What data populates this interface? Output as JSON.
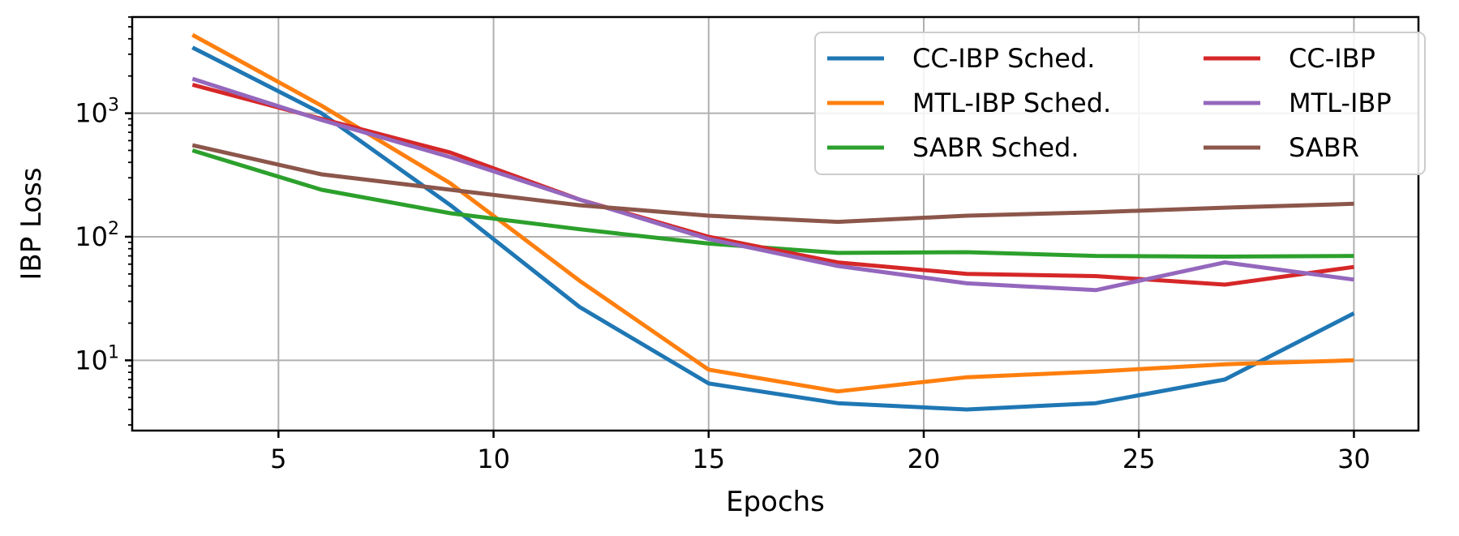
{
  "chart_data": {
    "type": "line",
    "title": "",
    "xlabel": "Epochs",
    "ylabel": "IBP Loss",
    "yscale": "log",
    "xlim": [
      1.6,
      31.5
    ],
    "ylim": [
      2.7,
      6000
    ],
    "grid": true,
    "legend_position": "top-right",
    "x_ticks": [
      5,
      10,
      15,
      20,
      25,
      30
    ],
    "x_tick_labels": [
      "5",
      "10",
      "15",
      "20",
      "25",
      "30"
    ],
    "y_ticks": [
      {
        "base": "10",
        "exp": "1",
        "value": 10
      },
      {
        "base": "10",
        "exp": "2",
        "value": 100
      },
      {
        "base": "10",
        "exp": "3",
        "value": 1000
      }
    ],
    "x": [
      3,
      6,
      9,
      12,
      15,
      18,
      21,
      24,
      27,
      30
    ],
    "series": [
      {
        "name": "CC-IBP Sched.",
        "color": "#1f77b4",
        "values": [
          3400,
          1000,
          180,
          27,
          6.5,
          4.5,
          4.0,
          4.5,
          7.0,
          24
        ]
      },
      {
        "name": "MTL-IBP Sched.",
        "color": "#ff7f0e",
        "values": [
          4300,
          1150,
          270,
          44,
          8.4,
          5.6,
          7.3,
          8.1,
          9.3,
          10
        ]
      },
      {
        "name": "SABR Sched.",
        "color": "#2ca02c",
        "values": [
          500,
          240,
          155,
          115,
          88,
          74,
          75,
          70,
          69,
          70
        ]
      },
      {
        "name": "CC-IBP",
        "color": "#d62728",
        "values": [
          1700,
          900,
          480,
          200,
          100,
          62,
          50,
          48,
          41,
          57
        ]
      },
      {
        "name": "MTL-IBP",
        "color": "#9467bd",
        "values": [
          1900,
          880,
          440,
          200,
          96,
          58,
          42,
          37,
          62,
          45
        ]
      },
      {
        "name": "SABR",
        "color": "#8c564b",
        "values": [
          550,
          320,
          240,
          180,
          148,
          132,
          148,
          158,
          172,
          185
        ]
      }
    ]
  }
}
